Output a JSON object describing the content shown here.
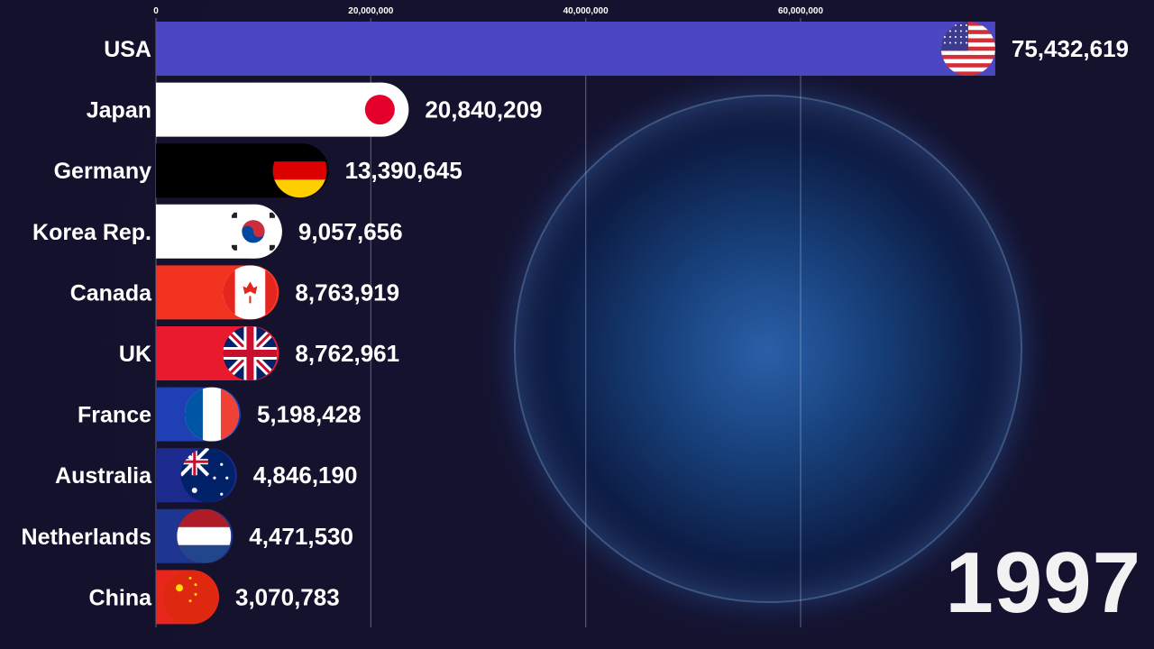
{
  "chart_data": {
    "type": "bar",
    "orientation": "horizontal",
    "title": "",
    "xlabel": "",
    "ylabel": "",
    "xlim": [
      0,
      80000000
    ],
    "x_ticks": [
      {
        "value": 0,
        "label": "0"
      },
      {
        "value": 20000000,
        "label": "20,000,000"
      },
      {
        "value": 40000000,
        "label": "40,000,000"
      },
      {
        "value": 60000000,
        "label": "60,000,000"
      }
    ],
    "grid": true,
    "categories": [
      "USA",
      "Japan",
      "Germany",
      "Korea Rep.",
      "Canada",
      "UK",
      "France",
      "Australia",
      "Netherlands",
      "China"
    ],
    "values": [
      75432619,
      20840209,
      13390645,
      9057656,
      8763919,
      8762961,
      5198428,
      4846190,
      4471530,
      3070783
    ],
    "value_labels": [
      "75,432,619",
      "20,840,209",
      "13,390,645",
      "9,057,656",
      "8,763,919",
      "8,762,961",
      "5,198,428",
      "4,846,190",
      "4,471,530",
      "3,070,783"
    ],
    "bar_colors": [
      "#4b47c2",
      "#ffffff",
      "#000000",
      "#ffffff",
      "#f2331f",
      "#e9192e",
      "#1f3fb4",
      "#1b2a8c",
      "#1f3592",
      "#e8261b"
    ],
    "flags": [
      "usa-flag",
      "japan-flag",
      "germany-flag",
      "korea-flag",
      "canada-flag",
      "uk-flag",
      "france-flag",
      "australia-flag",
      "netherlands-flag",
      "china-flag"
    ],
    "period_label": "1997"
  }
}
